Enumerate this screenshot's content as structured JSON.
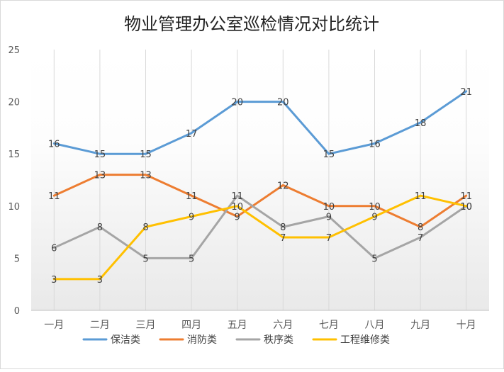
{
  "chart_data": {
    "type": "line",
    "title": "物业管理办公室巡检情况对比统计",
    "xlabel": "",
    "ylabel": "",
    "ylim": [
      0,
      25
    ],
    "yticks": [
      0,
      5,
      10,
      15,
      20,
      25
    ],
    "grid": "vertical",
    "legend_position": "bottom",
    "categories": [
      "一月",
      "二月",
      "三月",
      "四月",
      "五月",
      "六月",
      "七月",
      "八月",
      "九月",
      "十月"
    ],
    "series": [
      {
        "name": "保洁类",
        "color": "#5b9bd5",
        "values": [
          16,
          15,
          15,
          17,
          20,
          20,
          15,
          16,
          18,
          21
        ]
      },
      {
        "name": "消防类",
        "color": "#ed7d31",
        "values": [
          11,
          13,
          13,
          11,
          9,
          12,
          10,
          10,
          8,
          11
        ]
      },
      {
        "name": "秩序类",
        "color": "#a5a5a5",
        "values": [
          6,
          8,
          5,
          5,
          11,
          8,
          9,
          5,
          7,
          10
        ]
      },
      {
        "name": "工程维修类",
        "color": "#ffc000",
        "values": [
          3,
          3,
          8,
          9,
          10,
          7,
          7,
          9,
          11,
          10
        ]
      }
    ]
  }
}
